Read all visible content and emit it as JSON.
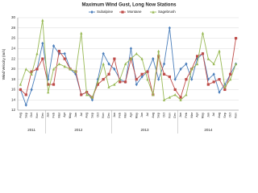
{
  "chart_data": {
    "type": "line",
    "title": "Maximum Wind Gust, Long Now Stations",
    "y_label": "Wind Velocity (m/s)",
    "categories": [
      "Aug",
      "Sep",
      "Oct",
      "Nov",
      "Dec",
      "Jan",
      "Feb",
      "Mar",
      "Apr",
      "May",
      "Jun",
      "Jul",
      "Aug",
      "Sep",
      "Oct",
      "Nov",
      "Dec",
      "Jan",
      "Feb",
      "Mar",
      "Apr",
      "May",
      "Jun",
      "Jul",
      "Aug",
      "Sep",
      "Oct",
      "Nov",
      "Dec",
      "Jan",
      "Feb",
      "Mar",
      "Apr",
      "May",
      "Jun",
      "Jul",
      "Aug",
      "Sep",
      "Oct",
      "Nov"
    ],
    "years": [
      "2011",
      "2012",
      "2013",
      "2014"
    ],
    "series": [
      {
        "name": "Subalpine",
        "color": "#4a7ebb",
        "marker": "diamond",
        "values": [
          16,
          13,
          16,
          20,
          25,
          18,
          24.5,
          23,
          23,
          20,
          19,
          15,
          15.5,
          14,
          18,
          23,
          21,
          20,
          18,
          17.5,
          24,
          17,
          18.5,
          19.5,
          22,
          18,
          21,
          28,
          18,
          20,
          21,
          18,
          22,
          23,
          18,
          19,
          15.5,
          17,
          19,
          21
        ]
      },
      {
        "name": "Montane",
        "color": "#be4b48",
        "marker": "square",
        "values": [
          16,
          15,
          19.5,
          20,
          22,
          17,
          17,
          23.5,
          22,
          20,
          19.5,
          15,
          15.5,
          14.5,
          17,
          18,
          19,
          22,
          17.5,
          17.5,
          22,
          18,
          19,
          19.5,
          15,
          22.5,
          19,
          18.5,
          16,
          14.5,
          18,
          20,
          22.5,
          23,
          17,
          17.5,
          18,
          16,
          19,
          26
        ]
      },
      {
        "name": "Sagebrush",
        "color": "#98b954",
        "marker": "triangle",
        "values": [
          17,
          20,
          19,
          23,
          29.5,
          15.5,
          20,
          21,
          20.5,
          20,
          19.5,
          27,
          15,
          14.5,
          17.5,
          21,
          16.5,
          17,
          18,
          21,
          22,
          23,
          22,
          18,
          15,
          23.5,
          14,
          14.5,
          15,
          14,
          15,
          20,
          21,
          27,
          22,
          21,
          23.5,
          16.5,
          18,
          21
        ]
      }
    ],
    "ylim": [
      12,
      30
    ],
    "yticks": [
      12,
      14,
      16,
      18,
      20,
      22,
      24,
      26,
      28,
      30
    ],
    "grid": true
  }
}
